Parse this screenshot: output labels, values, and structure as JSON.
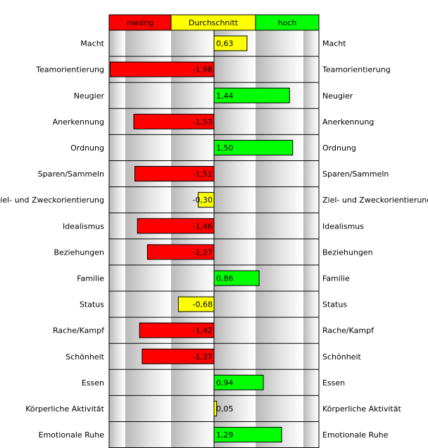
{
  "chart_data": {
    "type": "bar",
    "orientation": "horizontal",
    "zones": [
      {
        "label": "niedrig",
        "color": "#ff0000"
      },
      {
        "label": "Durchschnitt",
        "color": "#ffff00"
      },
      {
        "label": "hoch",
        "color": "#00ff00"
      }
    ],
    "xlim": [
      -2,
      2
    ],
    "grid": true,
    "categories": [
      "Macht",
      "Teamorientierung",
      "Neugier",
      "Anerkennung",
      "Ordnung",
      "Sparen/Sammeln",
      "Ziel- und Zweckorientierung",
      "Idealismus",
      "Beziehungen",
      "Familie",
      "Status",
      "Rache/Kampf",
      "Schönheit",
      "Essen",
      "Körperliche Aktivität",
      "Emotionale Ruhe"
    ],
    "values": [
      0.63,
      -1.98,
      1.44,
      -1.53,
      1.5,
      -1.51,
      -0.3,
      -1.46,
      -1.27,
      0.86,
      -0.68,
      -1.42,
      -1.37,
      0.94,
      0.05,
      1.29
    ],
    "labels": [
      "0,63",
      "-1,98",
      "1,44",
      "-1,53",
      "1,50",
      "-1,51",
      "-0,30",
      "-1,46",
      "-1,27",
      "0,86",
      "-0,68",
      "-1,42",
      "-1,37",
      "0,94",
      "0,05",
      "1,29"
    ],
    "colors": [
      "#ffff00",
      "#ff0000",
      "#00ff00",
      "#ff0000",
      "#00ff00",
      "#ff0000",
      "#ffff00",
      "#ff0000",
      "#ff0000",
      "#00ff00",
      "#ffff00",
      "#ff0000",
      "#ff0000",
      "#00ff00",
      "#ffff00",
      "#00ff00"
    ]
  }
}
